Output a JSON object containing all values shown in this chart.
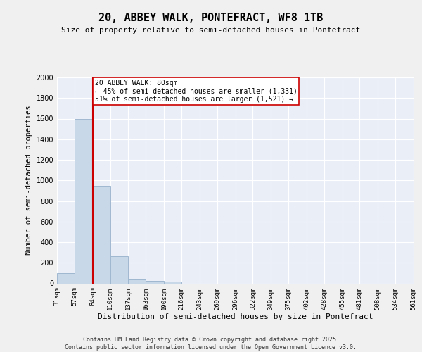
{
  "title": "20, ABBEY WALK, PONTEFRACT, WF8 1TB",
  "subtitle": "Size of property relative to semi-detached houses in Pontefract",
  "xlabel": "Distribution of semi-detached houses by size in Pontefract",
  "ylabel": "Number of semi-detached properties",
  "bins": [
    31,
    57,
    84,
    110,
    137,
    163,
    190,
    216,
    243,
    269,
    296,
    322,
    349,
    375,
    402,
    428,
    455,
    481,
    508,
    534,
    561
  ],
  "counts": [
    100,
    1600,
    950,
    260,
    40,
    25,
    15,
    0,
    0,
    0,
    0,
    0,
    0,
    0,
    0,
    0,
    0,
    0,
    0,
    0
  ],
  "bar_color": "#c8d8e8",
  "bar_edgecolor": "#a0b8d0",
  "redline_x": 84,
  "redline_color": "#cc0000",
  "annotation_text": "20 ABBEY WALK: 80sqm\n← 45% of semi-detached houses are smaller (1,331)\n51% of semi-detached houses are larger (1,521) →",
  "annotation_box_color": "#ffffff",
  "annotation_box_edgecolor": "#cc0000",
  "ylim": [
    0,
    2000
  ],
  "yticks": [
    0,
    200,
    400,
    600,
    800,
    1000,
    1200,
    1400,
    1600,
    1800,
    2000
  ],
  "bg_color": "#eaeff7",
  "grid_color": "#ffffff",
  "fig_bg_color": "#f0f0f0",
  "footer": "Contains HM Land Registry data © Crown copyright and database right 2025.\nContains public sector information licensed under the Open Government Licence v3.0.",
  "title_fontsize": 11,
  "subtitle_fontsize": 8,
  "ylabel_fontsize": 7.5,
  "xlabel_fontsize": 8,
  "tick_fontsize": 6.5,
  "footer_fontsize": 6,
  "annot_fontsize": 7
}
